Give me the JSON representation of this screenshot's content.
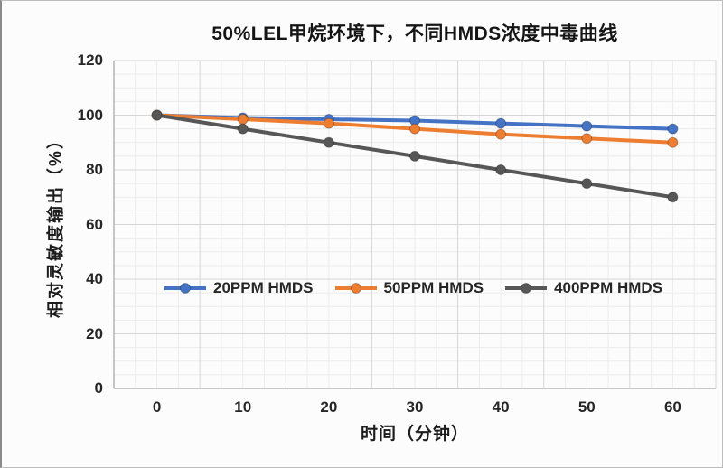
{
  "frame": {
    "background": "#fcfcfc",
    "border_color": "#bdbdbd"
  },
  "chart_data": {
    "type": "line",
    "title": "50%LEL甲烷环境下，不同HMDS浓度中毒曲线",
    "xlabel": "时间（分钟）",
    "ylabel": "相对灵敏度输出（%）",
    "x": [
      0,
      10,
      20,
      30,
      40,
      50,
      60
    ],
    "series": [
      {
        "name": "20PPM HMDS",
        "color": "#4472C4",
        "values": [
          100,
          99,
          98.5,
          98,
          97,
          96,
          95
        ]
      },
      {
        "name": "50PPM HMDS",
        "color": "#ED7D31",
        "values": [
          100,
          98.5,
          97,
          95,
          93,
          91.5,
          90
        ]
      },
      {
        "name": "400PPM HMDS",
        "color": "#575757",
        "values": [
          100,
          95,
          90,
          85,
          80,
          75,
          70
        ]
      }
    ],
    "xlim": [
      -5,
      65
    ],
    "ylim": [
      0,
      120
    ],
    "yticks": [
      0,
      20,
      40,
      60,
      80,
      100,
      120
    ],
    "xticks": [
      0,
      10,
      20,
      30,
      40,
      50,
      60
    ],
    "grid": {
      "major_color": "#d6d6d6",
      "minor_color": "#ececec",
      "y_major_step": 20,
      "y_minor_step": 5,
      "x_major_step": 10,
      "x_minor_step": 2.5,
      "grid_on": true
    },
    "axis_color": "#b3b3b3",
    "text_color": "#262626",
    "legend_position": "inside-left-lower-middle",
    "marker": "circle",
    "line_width": 4
  }
}
